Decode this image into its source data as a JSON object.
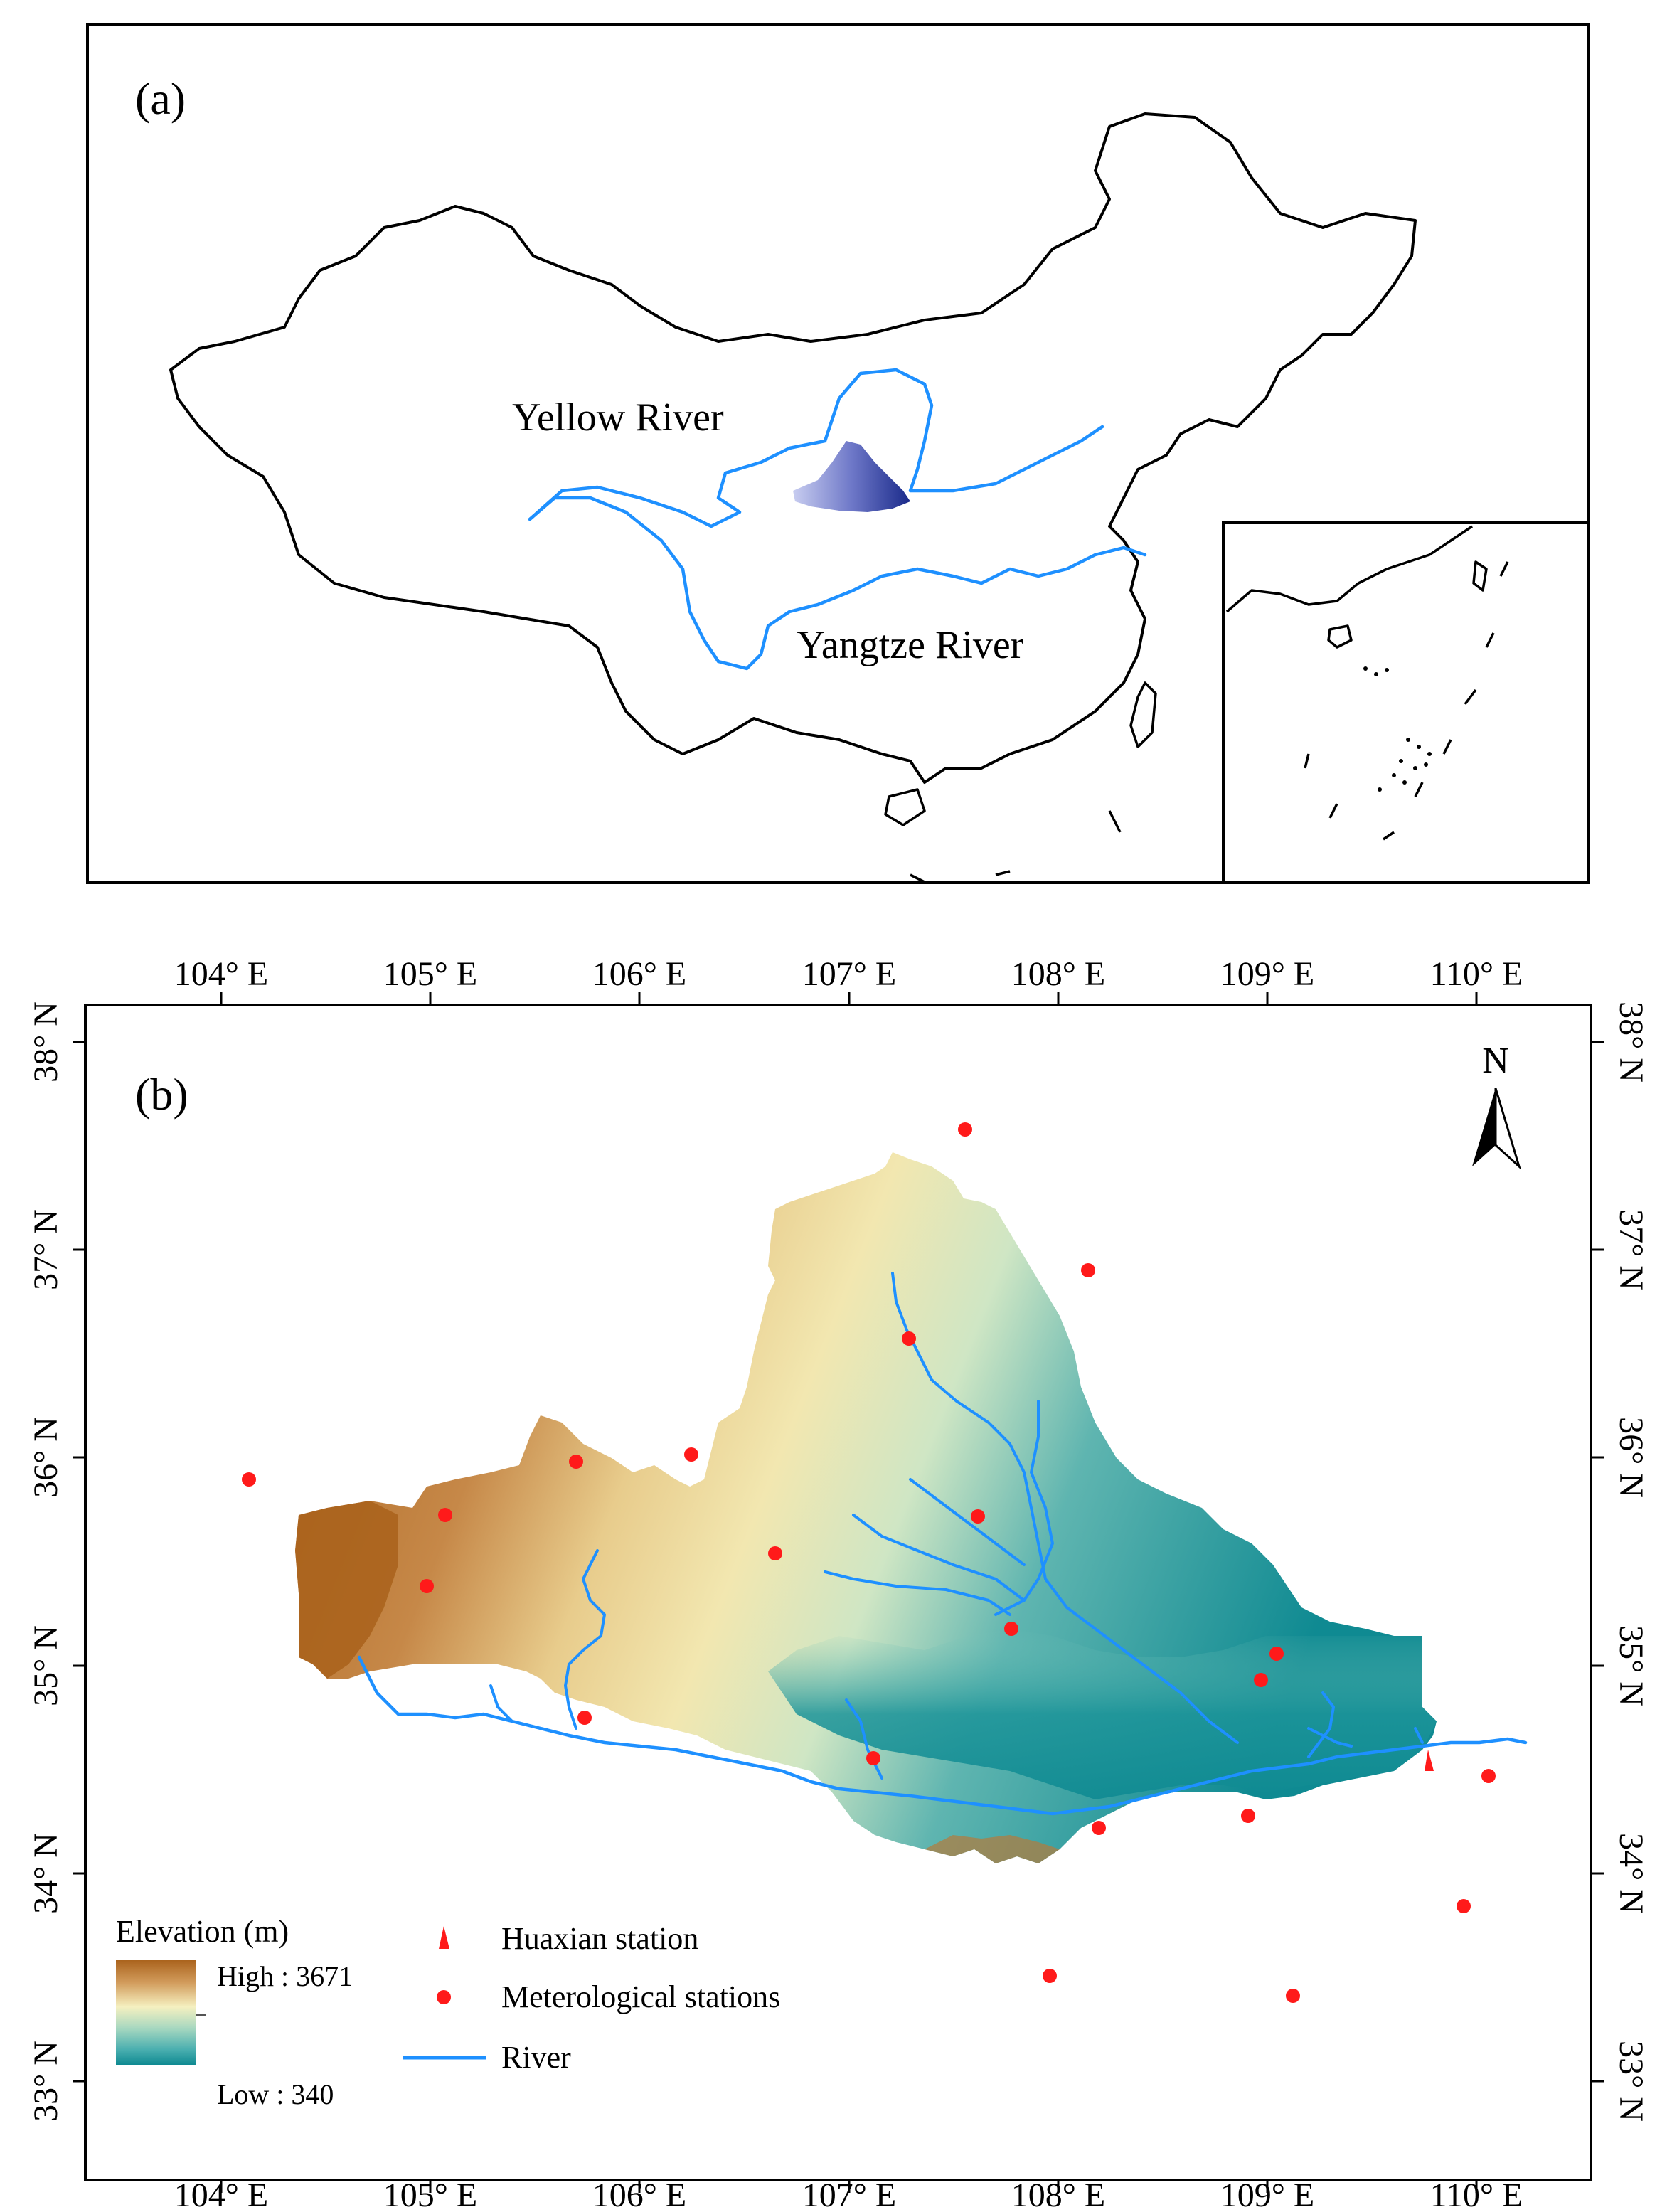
{
  "panel_a": {
    "label": "(a)",
    "rivers": [
      "Yellow River",
      "Yangtze River"
    ]
  },
  "panel_b": {
    "label": "(b)",
    "north_arrow": "N",
    "top_ticks": [
      "104° E",
      "105° E",
      "106° E",
      "107° E",
      "108° E",
      "109° E",
      "110° E"
    ],
    "bottom_ticks": [
      "104° E",
      "105° E",
      "106° E",
      "107° E",
      "108° E",
      "109° E",
      "110° E"
    ],
    "left_ticks": [
      "38° N",
      "37° N",
      "36° N",
      "35° N",
      "34° N",
      "33° N"
    ],
    "right_ticks": [
      "38° N",
      "37° N",
      "36° N",
      "35° N",
      "34° N",
      "33° N"
    ],
    "legend": {
      "elevation_title": "Elevation (m)",
      "high_label": "High : 3671",
      "low_label": "Low : 340",
      "huaxian": "Huaxian station",
      "met_stations": "Meterological stations",
      "river": "River"
    },
    "colors": {
      "elev_high": "#a9611b",
      "elev_mid": "#f5f0c0",
      "elev_low": "#0f8a92",
      "river": "#1e90ff",
      "station": "#ff1a1a"
    }
  }
}
